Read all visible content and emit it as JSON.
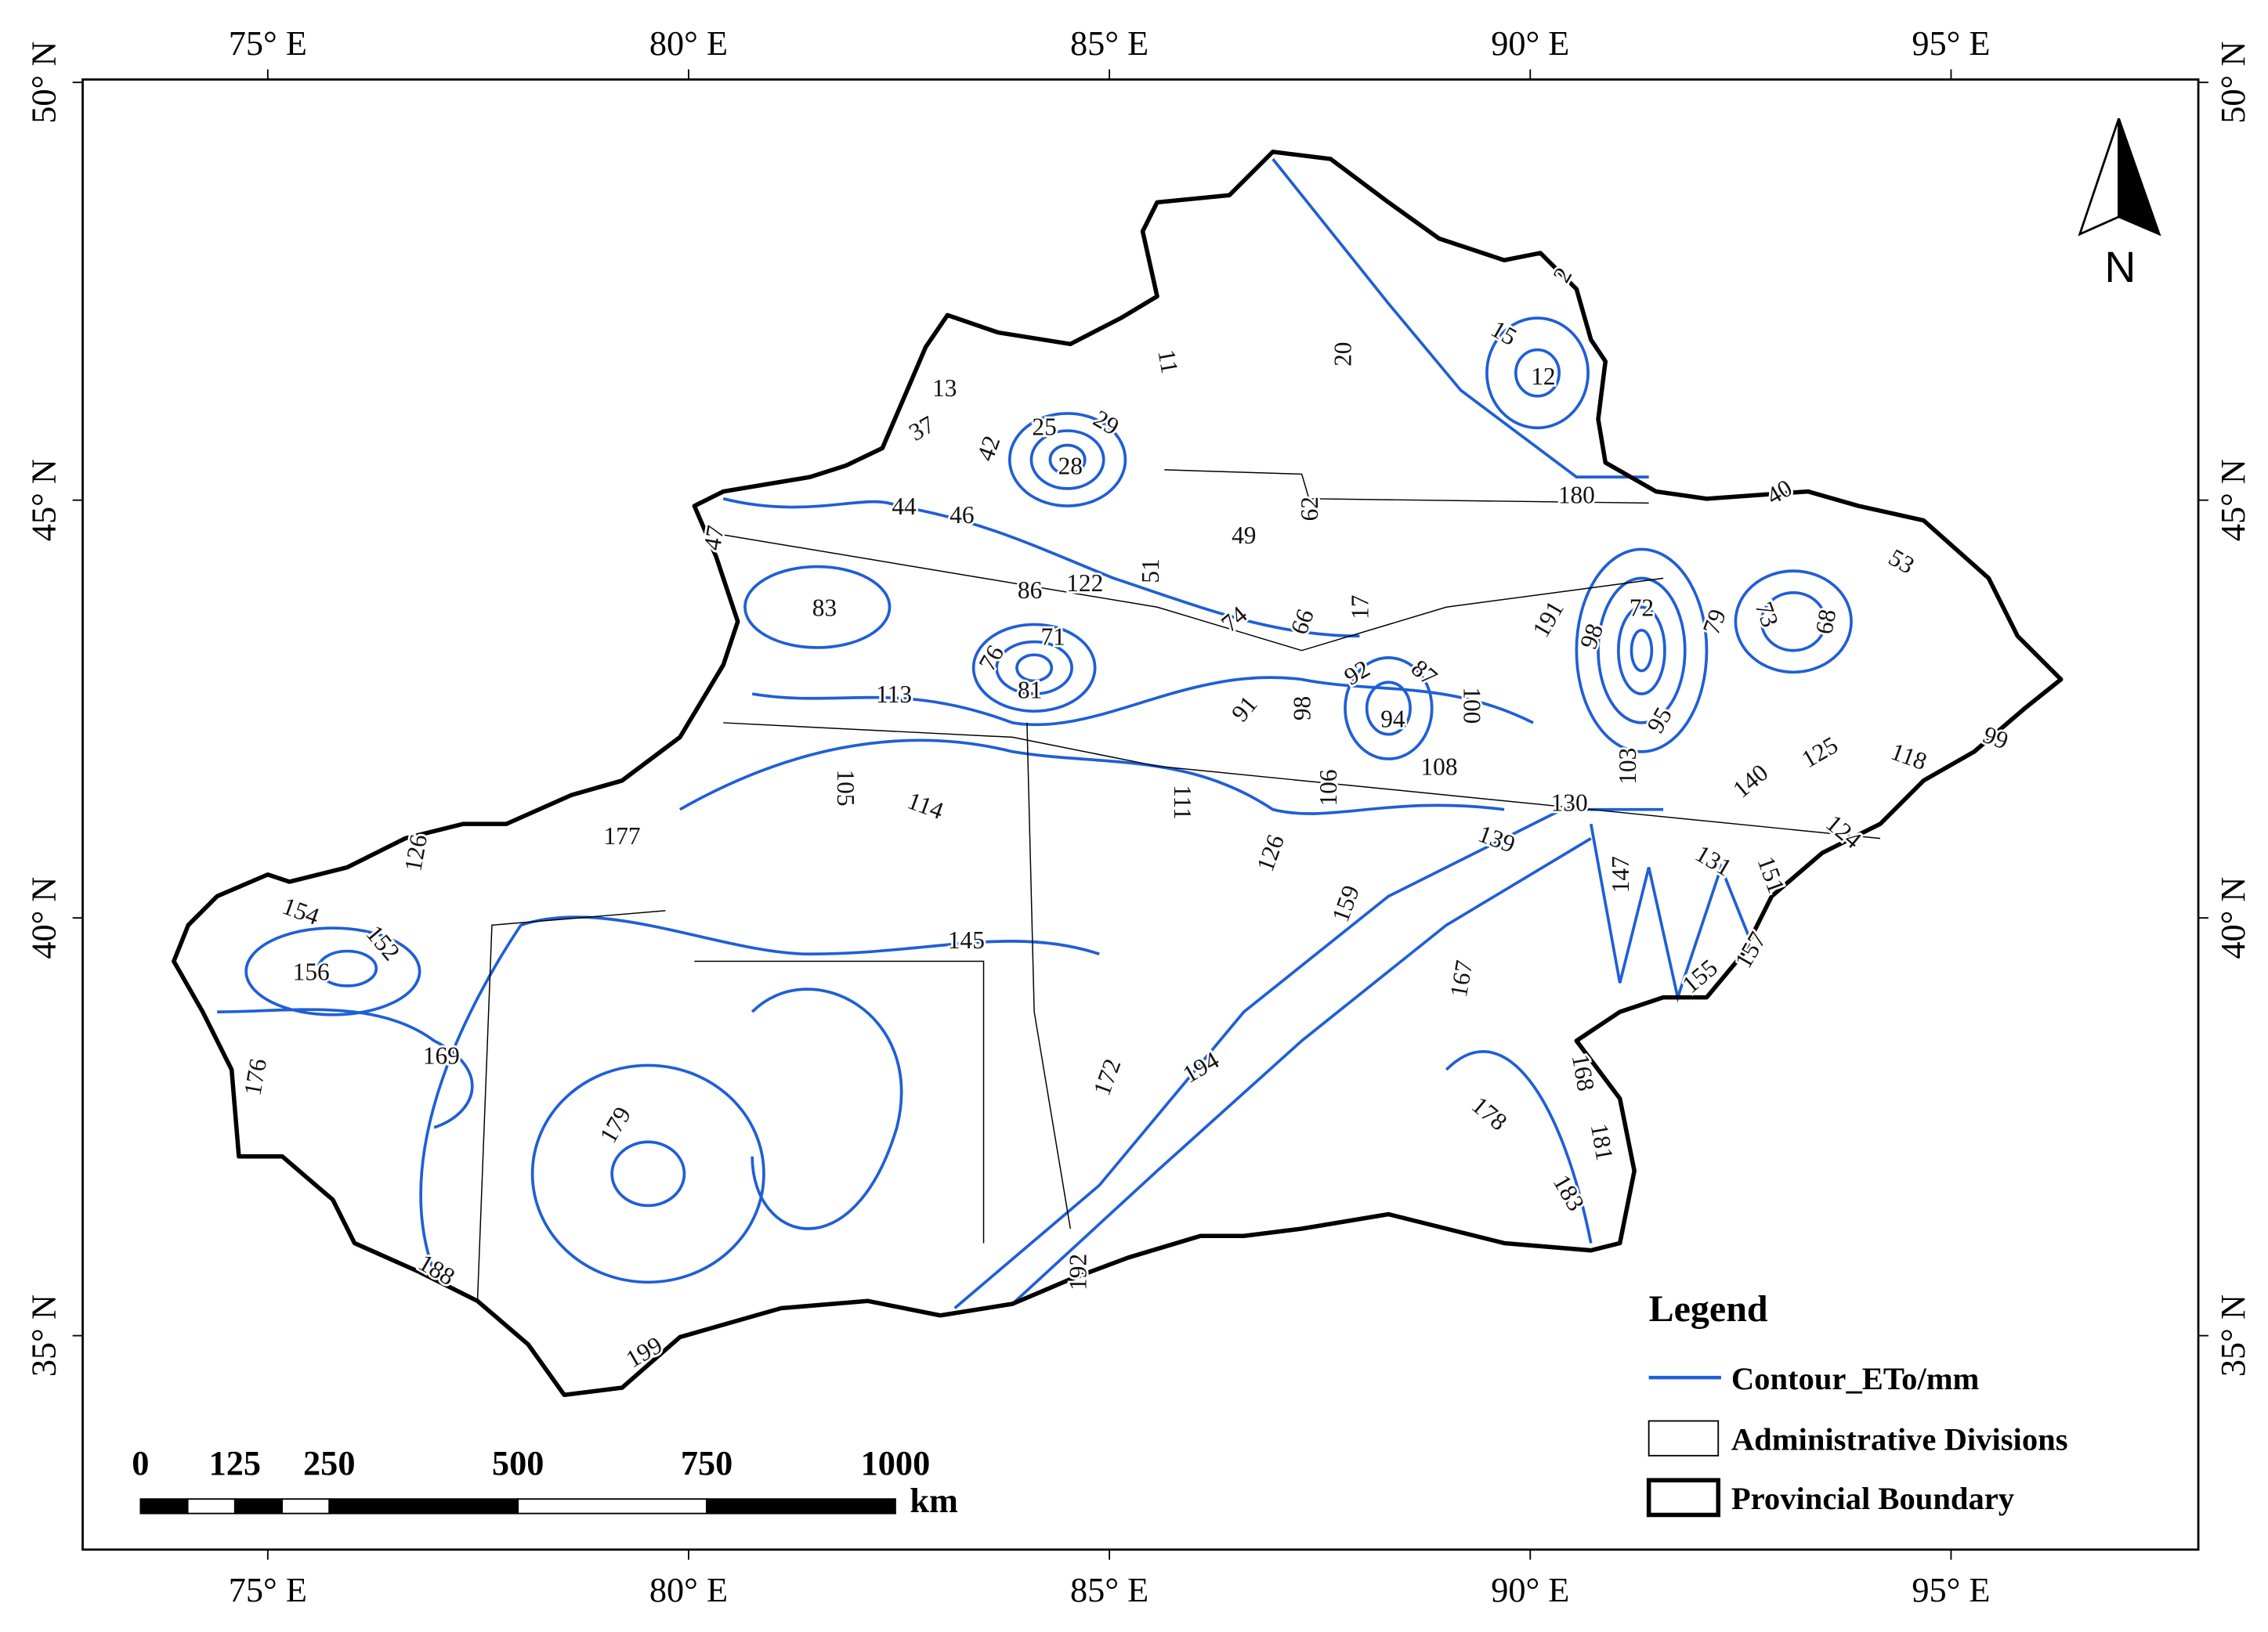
{
  "map": {
    "lon_ticks": [
      {
        "value": 75,
        "label": "75° E"
      },
      {
        "value": 80,
        "label": "80° E"
      },
      {
        "value": 85,
        "label": "85° E"
      },
      {
        "value": 90,
        "label": "90° E"
      },
      {
        "value": 95,
        "label": "95° E"
      }
    ],
    "lat_ticks": [
      {
        "value": 50,
        "label": "50° N"
      },
      {
        "value": 45,
        "label": "45° N"
      },
      {
        "value": 40,
        "label": "40° N"
      },
      {
        "value": 35,
        "label": "35° N"
      }
    ],
    "north": "N",
    "contour_labels": [
      "13",
      "37",
      "42",
      "25",
      "29",
      "28",
      "44",
      "46",
      "47",
      "11",
      "20",
      "15",
      "12",
      "2",
      "49",
      "62",
      "51",
      "86",
      "122",
      "83",
      "74",
      "76",
      "71",
      "81",
      "113",
      "66",
      "17",
      "92",
      "87",
      "91",
      "98",
      "94",
      "191",
      "100",
      "108",
      "72",
      "98",
      "95",
      "79",
      "53",
      "73",
      "68",
      "40",
      "180",
      "105",
      "114",
      "111",
      "106",
      "103",
      "140",
      "125",
      "118",
      "99",
      "130",
      "177",
      "126",
      "139",
      "147",
      "131",
      "151",
      "124",
      "154",
      "126",
      "152",
      "156",
      "145",
      "159",
      "157",
      "155",
      "169",
      "167",
      "176",
      "172",
      "194",
      "179",
      "168",
      "178",
      "181",
      "183",
      "188",
      "192",
      "199"
    ],
    "legend": {
      "title": "Legend",
      "items": [
        "Contour_ETo/mm",
        "Administrative Divisions",
        "Provincial Boundary"
      ]
    },
    "scale_bar": {
      "ticks": [
        0,
        125,
        250,
        500,
        750,
        1000
      ],
      "unit": "km"
    }
  }
}
